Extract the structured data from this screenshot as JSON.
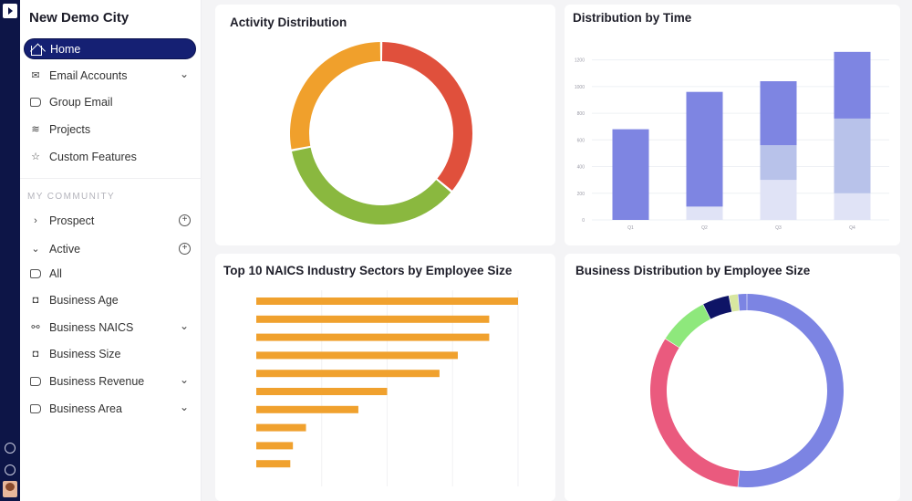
{
  "sidebar": {
    "title": "New Demo City",
    "nav": [
      {
        "label": "Home",
        "icon": "home-icon",
        "active": true
      },
      {
        "label": "Email Accounts",
        "icon": "mail-icon",
        "trail": "chevron-down-icon"
      },
      {
        "label": "Group Email",
        "icon": "megaphone-icon"
      },
      {
        "label": "Projects",
        "icon": "layers-icon"
      },
      {
        "label": "Custom Features",
        "icon": "sparkle-star-icon"
      }
    ],
    "community_label": "MY COMMUNITY",
    "community": [
      {
        "label": "Prospect",
        "icon": "chevron-right-icon",
        "trail": "add-circle-icon"
      },
      {
        "label": "Active",
        "icon": "chevron-down-icon",
        "trail": "add-circle-icon"
      },
      {
        "label": "All",
        "icon": "tag-icon"
      },
      {
        "label": "Business Age",
        "icon": "bag-icon"
      },
      {
        "label": "Business NAICS",
        "icon": "network-icon",
        "trail": "chevron-down-icon"
      },
      {
        "label": "Business Size",
        "icon": "bag-icon"
      },
      {
        "label": "Business Revenue",
        "icon": "tag-icon",
        "trail": "chevron-down-icon"
      },
      {
        "label": "Business Area",
        "icon": "tag-icon",
        "trail": "chevron-down-icon"
      }
    ]
  },
  "rail": {
    "icons": [
      "app-logo-icon",
      "help-icon",
      "settings-icon",
      "user-avatar"
    ]
  },
  "cards": {
    "activity": {
      "title": "Activity Distribution"
    },
    "time": {
      "title": "Distribution by Time"
    },
    "naics": {
      "title": "Top 10 NAICS Industry Sectors by Employee Size"
    },
    "employee": {
      "title": "Business Distribution by Employee Size"
    }
  },
  "chart_data": [
    {
      "type": "pie",
      "title": "Activity Distribution",
      "donut": true,
      "slices": [
        {
          "value": 36,
          "color": "#e0503c"
        },
        {
          "value": 36,
          "color": "#8ab83f"
        },
        {
          "value": 28,
          "color": "#f0a02c"
        }
      ]
    },
    {
      "type": "bar",
      "title": "Distribution by Time",
      "stacked": true,
      "categories": [
        "Q1",
        "Q2",
        "Q3",
        "Q4"
      ],
      "y_ticks": [
        0,
        200,
        400,
        600,
        800,
        1000,
        1200
      ],
      "ylim": [
        0,
        1300
      ],
      "series": [
        {
          "color": "#e0e3f6",
          "values": [
            0,
            100,
            300,
            200
          ]
        },
        {
          "color": "#b8c2ea",
          "values": [
            0,
            0,
            260,
            560
          ]
        },
        {
          "color": "#7e85e2",
          "values": [
            680,
            860,
            480,
            500
          ]
        }
      ]
    },
    {
      "type": "bar",
      "title": "Top 10 NAICS Industry Sectors by Employee Size",
      "orientation": "horizontal",
      "color": "#f0a12e",
      "values": [
        100,
        89,
        89,
        77,
        70,
        50,
        39,
        19,
        14,
        13
      ]
    },
    {
      "type": "pie",
      "title": "Business Distribution by Employee Size",
      "donut": true,
      "slices": [
        {
          "value": 51.5,
          "color": "#7c84e3"
        },
        {
          "value": 32.5,
          "color": "#ea5a7e"
        },
        {
          "value": 8.5,
          "color": "#8ee87c"
        },
        {
          "value": 4.5,
          "color": "#0e1466"
        },
        {
          "value": 1.5,
          "color": "#d8e7a0"
        },
        {
          "value": 1.5,
          "color": "#7c84e3"
        }
      ]
    }
  ]
}
